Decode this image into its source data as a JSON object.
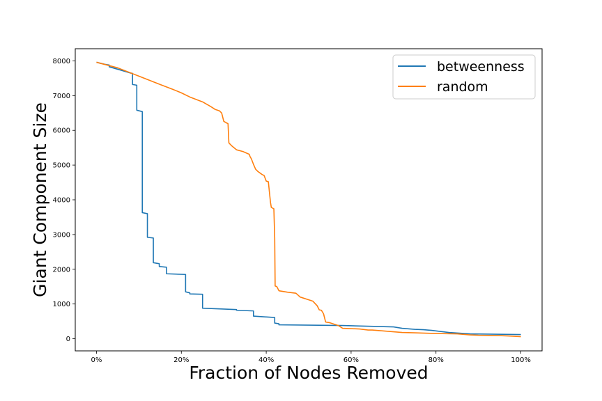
{
  "chart_data": {
    "type": "line",
    "title": "",
    "xlabel": "Fraction of Nodes Removed",
    "ylabel": "Giant Component Size",
    "xlim": [
      -0.05,
      1.05
    ],
    "ylim": [
      -350,
      8350
    ],
    "x_ticks": [
      0,
      0.2,
      0.4,
      0.6,
      0.8,
      1.0
    ],
    "x_tick_labels": [
      "0%",
      "20%",
      "40%",
      "60%",
      "80%",
      "100%"
    ],
    "y_ticks": [
      0,
      1000,
      2000,
      3000,
      4000,
      5000,
      6000,
      7000,
      8000
    ],
    "y_tick_labels": [
      "0",
      "1000",
      "2000",
      "3000",
      "4000",
      "5000",
      "6000",
      "7000",
      "8000"
    ],
    "grid": false,
    "legend_position": "top-right",
    "series": [
      {
        "name": "betweenness",
        "color": "#1f77b4",
        "x": [
          0,
          0.02,
          0.03,
          0.03,
          0.05,
          0.08,
          0.085,
          0.085,
          0.095,
          0.095,
          0.108,
          0.108,
          0.12,
          0.12,
          0.134,
          0.134,
          0.148,
          0.148,
          0.165,
          0.165,
          0.21,
          0.21,
          0.22,
          0.22,
          0.25,
          0.25,
          0.33,
          0.33,
          0.37,
          0.37,
          0.42,
          0.42,
          0.43,
          0.43,
          0.58,
          0.7,
          0.72,
          0.75,
          0.77,
          0.79,
          0.81,
          0.83,
          0.88,
          1.0
        ],
        "y": [
          7960,
          7900,
          7880,
          7830,
          7760,
          7650,
          7640,
          7320,
          7300,
          6580,
          6540,
          3630,
          3600,
          2920,
          2900,
          2190,
          2160,
          2080,
          2060,
          1870,
          1850,
          1350,
          1320,
          1290,
          1280,
          880,
          840,
          820,
          800,
          650,
          610,
          450,
          430,
          400,
          380,
          340,
          300,
          270,
          260,
          240,
          210,
          180,
          140,
          120
        ]
      },
      {
        "name": "random",
        "color": "#ff7f0e",
        "x": [
          0,
          0.05,
          0.1,
          0.15,
          0.18,
          0.2,
          0.22,
          0.25,
          0.27,
          0.28,
          0.29,
          0.295,
          0.3,
          0.31,
          0.312,
          0.315,
          0.32,
          0.33,
          0.345,
          0.36,
          0.362,
          0.365,
          0.37,
          0.375,
          0.38,
          0.39,
          0.395,
          0.4,
          0.405,
          0.41,
          0.412,
          0.418,
          0.42,
          0.421,
          0.425,
          0.43,
          0.44,
          0.45,
          0.47,
          0.48,
          0.5,
          0.51,
          0.52,
          0.525,
          0.53,
          0.535,
          0.54,
          0.55,
          0.57,
          0.58,
          0.62,
          0.64,
          0.65,
          0.7,
          0.72,
          0.75,
          0.8,
          0.85,
          0.88,
          0.9,
          0.95,
          0.97,
          1.0
        ],
        "y": [
          7960,
          7800,
          7560,
          7320,
          7180,
          7080,
          6960,
          6820,
          6680,
          6600,
          6560,
          6500,
          6260,
          6190,
          5640,
          5600,
          5540,
          5440,
          5390,
          5310,
          5240,
          5180,
          5020,
          4880,
          4820,
          4730,
          4700,
          4540,
          4520,
          3930,
          3780,
          3740,
          2900,
          1520,
          1500,
          1380,
          1360,
          1340,
          1310,
          1200,
          1120,
          1080,
          950,
          830,
          820,
          720,
          480,
          460,
          380,
          300,
          280,
          250,
          250,
          200,
          180,
          170,
          150,
          140,
          110,
          100,
          90,
          80,
          60
        ]
      }
    ]
  }
}
